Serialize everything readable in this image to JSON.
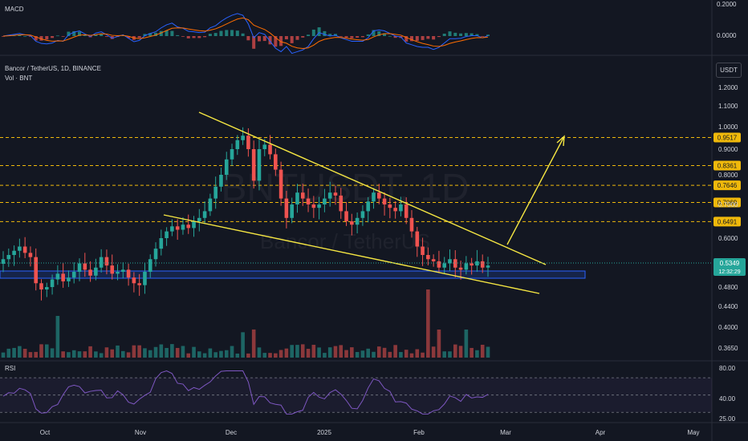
{
  "macd": {
    "title": "MACD",
    "ticks": [
      "0.2000",
      "0.0000"
    ],
    "values": [
      0.2,
      0.0
    ]
  },
  "main": {
    "symbol_line": "Bancor / TetherUS, 1D, BINANCE",
    "volume_line": "Vol · BNT",
    "currency_button": "USDT",
    "watermark_symbol": "BNTUSDT, 1D",
    "watermark_name": "Bancor / TetherUS"
  },
  "rsi": {
    "title": "RSI",
    "ticks": [
      "80.00",
      "40.00",
      "25.00"
    ]
  },
  "price_axis": {
    "ticks": [
      "1.2000",
      "1.1000",
      "1.0000",
      "0.9000",
      "0.8000",
      "0.7000",
      "0.6000",
      "0.5200",
      "0.4800",
      "0.4400",
      "0.4000",
      "0.3650"
    ],
    "values": [
      1.2,
      1.1,
      1.0,
      0.9,
      0.8,
      0.7,
      0.6,
      0.52,
      0.48,
      0.44,
      0.4,
      0.365
    ]
  },
  "levels": {
    "labels": [
      "0.9517",
      "0.8361",
      "0.7646",
      "0.7069",
      "0.6491"
    ],
    "values": [
      0.9517,
      0.8361,
      0.7646,
      0.7069,
      0.6491
    ],
    "color": "#f0b90b"
  },
  "current_price": {
    "price": "0.5349",
    "countdown": "12:32:29",
    "value": 0.5349,
    "color": "#26a69a"
  },
  "time_axis": {
    "labels": [
      "Oct",
      "Nov",
      "Dec",
      "2025",
      "Feb",
      "Mar",
      "Apr",
      "May"
    ]
  },
  "colors": {
    "background": "#131722",
    "up": "#26a69a",
    "down": "#ef5350",
    "trendline": "#f5e642",
    "support_zone": "#2962ff",
    "macd_line": "#2962ff",
    "signal_line": "#ff6d00",
    "rsi_line": "#7e57c2"
  },
  "chart_data": {
    "type": "candlestick",
    "series_price": [
      0.55,
      0.56,
      0.57,
      0.58,
      0.565,
      0.555,
      0.49,
      0.475,
      0.48,
      0.5,
      0.515,
      0.495,
      0.505,
      0.52,
      0.54,
      0.525,
      0.51,
      0.53,
      0.555,
      0.535,
      0.515,
      0.52,
      0.525,
      0.505,
      0.49,
      0.485,
      0.52,
      0.55,
      0.575,
      0.6,
      0.62,
      0.635,
      0.625,
      0.64,
      0.63,
      0.65,
      0.66,
      0.68,
      0.72,
      0.76,
      0.8,
      0.86,
      0.9,
      0.94,
      0.96,
      0.9,
      0.78,
      0.9,
      0.92,
      0.88,
      0.82,
      0.72,
      0.66,
      0.7,
      0.74,
      0.72,
      0.7,
      0.69,
      0.7,
      0.72,
      0.74,
      0.73,
      0.68,
      0.65,
      0.64,
      0.66,
      0.68,
      0.71,
      0.74,
      0.72,
      0.7,
      0.69,
      0.68,
      0.7,
      0.66,
      0.62,
      0.58,
      0.56,
      0.55,
      0.545,
      0.53,
      0.54,
      0.55,
      0.53,
      0.525,
      0.54,
      0.535,
      0.545,
      0.53,
      0.535
    ],
    "support_zone": [
      0.51,
      0.527
    ],
    "price_range": [
      0.34,
      1.26
    ],
    "macd_range": [
      -0.08,
      0.22
    ],
    "rsi_range": [
      20,
      85
    ]
  }
}
